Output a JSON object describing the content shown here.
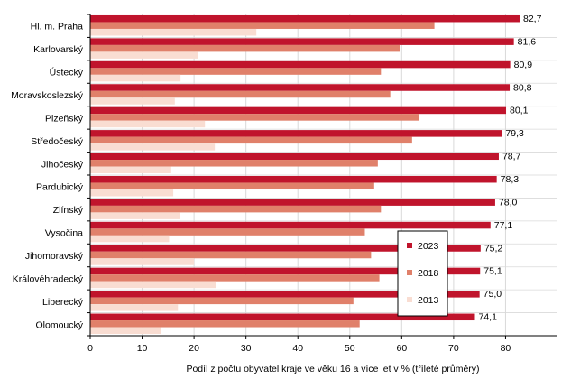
{
  "chart_data": {
    "type": "bar",
    "orientation": "horizontal",
    "categories": [
      "Hl. m. Praha",
      "Karlovarský",
      "Ústecký",
      "Moravskoslezský",
      "Plzeňský",
      "Středočeský",
      "Jihočeský",
      "Pardubický",
      "Zlínský",
      "Vysočina",
      "Jihomoravský",
      "Královéhradecký",
      "Liberecký",
      "Olomoucký"
    ],
    "series": [
      {
        "name": "2023",
        "color": "#c0142c",
        "values": [
          82.7,
          81.6,
          80.9,
          80.8,
          80.1,
          79.3,
          78.7,
          78.3,
          78.0,
          77.1,
          75.2,
          75.1,
          75.0,
          74.1
        ]
      },
      {
        "name": "2018",
        "color": "#e0806a",
        "values": [
          66.3,
          59.6,
          56.0,
          57.8,
          63.3,
          62.0,
          55.4,
          54.7,
          56.0,
          52.9,
          54.1,
          55.7,
          50.7,
          51.9
        ]
      },
      {
        "name": "2013",
        "color": "#f9ddd2",
        "values": [
          32.0,
          20.7,
          17.4,
          16.3,
          22.1,
          24.0,
          15.6,
          16.0,
          17.2,
          15.2,
          20.0,
          24.2,
          16.9,
          13.6
        ]
      }
    ],
    "value_labels": [
      "82,7",
      "81,6",
      "80,9",
      "80,8",
      "80,1",
      "79,3",
      "78,7",
      "78,3",
      "78,0",
      "77,1",
      "75,2",
      "75,1",
      "75,0",
      "74,1"
    ],
    "x_ticks": [
      "0",
      "10",
      "20",
      "30",
      "40",
      "50",
      "60",
      "70",
      "80"
    ],
    "xlim": [
      0,
      90
    ],
    "xlabel": "Podíl z počtu obyvatel kraje ve věku 16 a více let v % (tříleté průměry)",
    "ylabel": "",
    "title": "",
    "legend": {
      "position": "right",
      "entries": [
        "2023",
        "2018",
        "2013"
      ]
    },
    "grid": true
  }
}
